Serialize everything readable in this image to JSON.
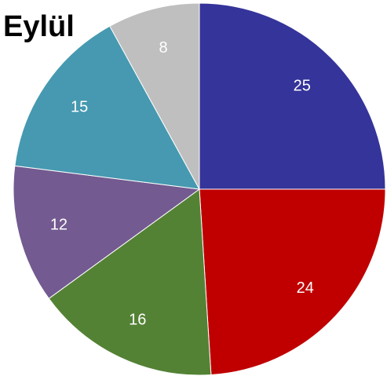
{
  "chart_data": {
    "type": "pie",
    "title": "Eylül",
    "values": [
      25,
      24,
      16,
      12,
      15,
      8
    ],
    "colors": [
      "#35349a",
      "#c00000",
      "#548235",
      "#735a90",
      "#4699b0",
      "#bfbfbf"
    ]
  }
}
